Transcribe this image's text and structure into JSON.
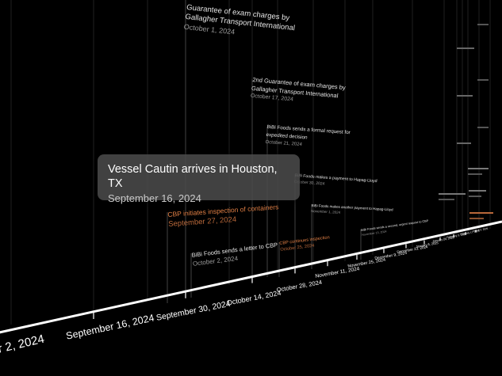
{
  "tooltip": {
    "title": "Vessel Cautin arrives in Houston, TX",
    "date": "September 16, 2024"
  },
  "axis": {
    "left_clip_label": "r 2, 2024",
    "labels": [
      "September 16, 2024",
      "September 30, 2024",
      "October 14, 2024",
      "October 28, 2024",
      "November 11, 2024",
      "November 25, 2024",
      "December 9, 2024",
      "December 23, 2024",
      "January 6, 2025",
      "January 20, 2025",
      "February 3, 2025",
      "February 17, 2025",
      "March 3, 2025"
    ]
  },
  "events": [
    {
      "title": "Guarantee of exam charges by Gallagher Transport International",
      "date": "October 1, 2024",
      "color": "white"
    },
    {
      "title": "2nd Guarantee of exam charges by Gallagher Transport International",
      "date": "October 17, 2024",
      "color": "white"
    },
    {
      "title": "BiBi Foods sends a formal request for expedited decision",
      "date": "October 21, 2024",
      "color": "white"
    },
    {
      "title": "BiBi Foods makes a payment to Hapag-Lloyd",
      "date": "October 30, 2024",
      "color": "white"
    },
    {
      "title": "BiBi Foods makes another payment to Hapag-Lloyd",
      "date": "November 1, 2024",
      "color": "white"
    },
    {
      "title": "CBP initiates inspection of containers",
      "date": "September 27, 2024",
      "color": "orange"
    },
    {
      "title": "BiBi Foods sends a letter to CBP",
      "date": "October 2, 2024",
      "color": "white"
    },
    {
      "title": "CBP continues inspection",
      "date": "October 25, 2024",
      "color": "orange"
    },
    {
      "title": "BiBi Foods sends a second, urgent request to CBP",
      "date": "November 13, 2024",
      "color": "white"
    }
  ],
  "colors": {
    "background": "#000000",
    "accent_orange": "#e07f45",
    "tooltip_bg": "#4a4a4a",
    "axis": "#ffffff"
  }
}
